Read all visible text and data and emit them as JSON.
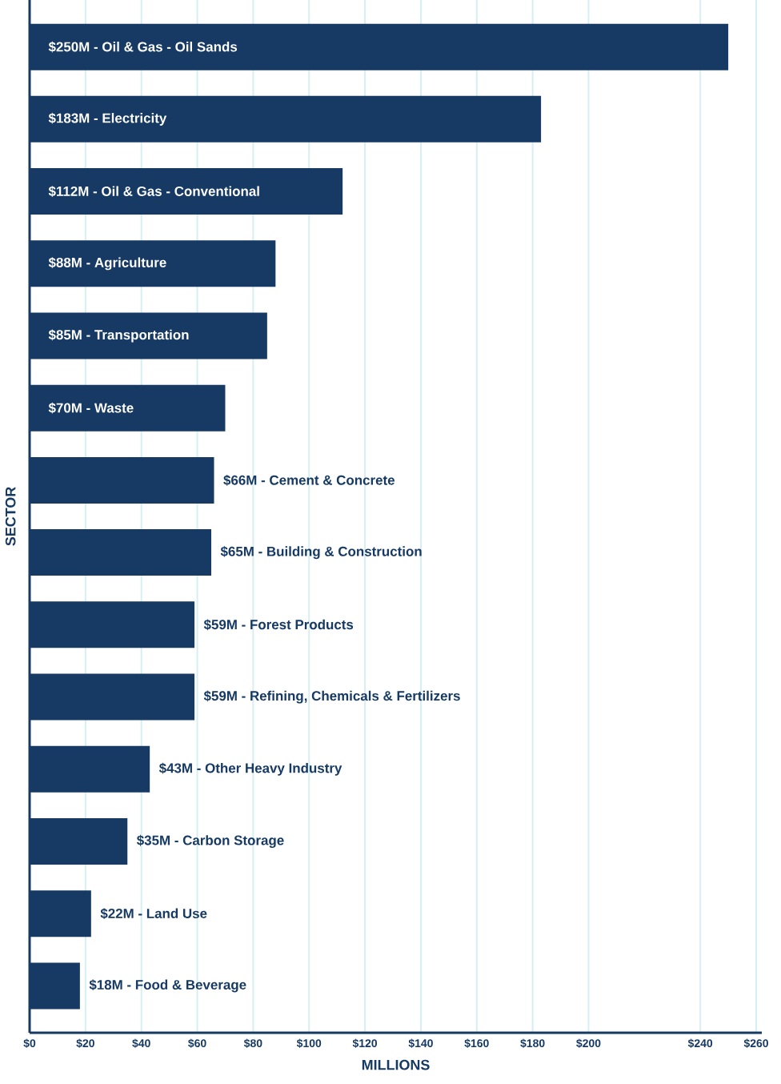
{
  "chart_data": {
    "type": "bar",
    "orientation": "horizontal",
    "xlabel": "MILLIONS",
    "ylabel": "SECTOR",
    "categories": [
      "$250M - Oil & Gas - Oil Sands",
      "$183M - Electricity",
      "$112M - Oil & Gas - Conventional",
      "$88M - Agriculture",
      "$85M - Transportation",
      "$70M - Waste",
      "$66M - Cement & Concrete",
      "$65M - Building & Construction",
      "$59M - Forest Products",
      "$59M - Refining, Chemicals & Fertilizers",
      "$43M - Other Heavy Industry",
      "$35M - Carbon Storage",
      "$22M - Land Use",
      "$18M - Food & Beverage"
    ],
    "values": [
      250,
      183,
      112,
      88,
      85,
      70,
      66,
      65,
      59,
      59,
      43,
      35,
      22,
      18
    ],
    "color": "#163a63",
    "xlim": [
      0,
      262
    ],
    "xticks": [
      {
        "value": 0,
        "label": "$0"
      },
      {
        "value": 20,
        "label": "$20"
      },
      {
        "value": 40,
        "label": "$40"
      },
      {
        "value": 60,
        "label": "$60"
      },
      {
        "value": 80,
        "label": "$80"
      },
      {
        "value": 100,
        "label": "$100"
      },
      {
        "value": 120,
        "label": "$120"
      },
      {
        "value": 140,
        "label": "$140"
      },
      {
        "value": 160,
        "label": "$160"
      },
      {
        "value": 180,
        "label": "$180"
      },
      {
        "value": 200,
        "label": "$200"
      },
      {
        "value": 240,
        "label": "$240"
      },
      {
        "value": 260,
        "label": "$260"
      }
    ],
    "grid": "x"
  }
}
